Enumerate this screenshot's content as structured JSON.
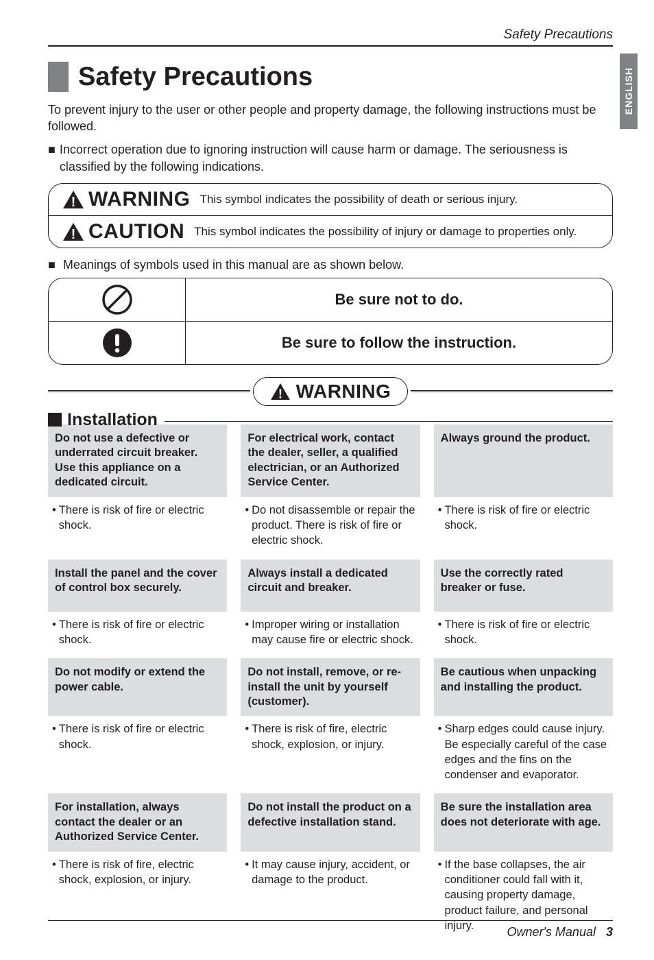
{
  "running_head": "Safety Precautions",
  "side_tab": "ENGLISH",
  "main_title": "Safety Precautions",
  "intro": "To prevent injury to the user or other people and property damage, the following instructions must be followed.",
  "intro_bullet": "Incorrect operation due to ignoring instruction will cause harm or damage. The seriousness is classified by the following indications.",
  "warn_caution": [
    {
      "label": "WARNING",
      "desc": "This symbol indicates the possibility of death or serious injury."
    },
    {
      "label": "CAUTION",
      "desc": "This symbol indicates the possibility of injury or damage to properties only."
    }
  ],
  "meanings_line": "Meanings of symbols used in this manual are as shown below.",
  "sym_rows": [
    {
      "text": "Be sure not to do."
    },
    {
      "text": "Be sure to follow the instruction."
    }
  ],
  "banner_label": "WARNING",
  "section_title": "Installation",
  "rows": [
    {
      "cells": [
        {
          "head": "Do not use a defective or underrated circuit breaker. Use this appliance on a dedicated circuit.",
          "body": "There is risk of fire or electric shock."
        },
        {
          "head": "For electrical work, contact the dealer, seller, a qualified electrician, or an Authorized Service Center.",
          "body": "Do not disassemble or repair the product. There is risk of fire or electric shock."
        },
        {
          "head": "Always ground the product.",
          "body": "There is risk of fire or electric shock."
        }
      ]
    },
    {
      "cells": [
        {
          "head": "Install the panel and the cover of control box securely.",
          "body": "There is risk of fire or electric shock."
        },
        {
          "head": "Always install a dedicated circuit and breaker.",
          "body": "Improper wiring or installation may cause fire or electric shock."
        },
        {
          "head": "Use the correctly rated breaker or fuse.",
          "body": "There is risk of fire or electric shock."
        }
      ]
    },
    {
      "cells": [
        {
          "head": "Do not modify or extend the power cable.",
          "body": "There is risk of fire or electric shock."
        },
        {
          "head": "Do not install, remove, or re-install the unit by yourself (customer).",
          "body": "There is risk of fire, electric shock, explosion, or injury."
        },
        {
          "head": "Be cautious when unpacking and installing  the product.",
          "body": "Sharp edges could cause injury. Be especially careful of the case edges and the fins on the condenser and evaporator."
        }
      ]
    },
    {
      "cells": [
        {
          "head": "For installation, always contact the dealer or an Authorized Service Center.",
          "body": "There is risk of fire, electric shock, explosion, or injury."
        },
        {
          "head": "Do not install the product on a defective installation stand.",
          "body": "It may cause injury, accident, or damage to the product."
        },
        {
          "head": "Be sure the installation area does not deteriorate with age.",
          "body": "If the base collapses, the air conditioner could fall with it, causing property damage, product failure, and personal injury."
        }
      ]
    }
  ],
  "footer": {
    "text": "Owner's Manual",
    "page": "3"
  },
  "colors": {
    "text": "#231f20",
    "grey_band": "#dcddde",
    "side_tab": "#808285",
    "title_block": "#808285"
  }
}
